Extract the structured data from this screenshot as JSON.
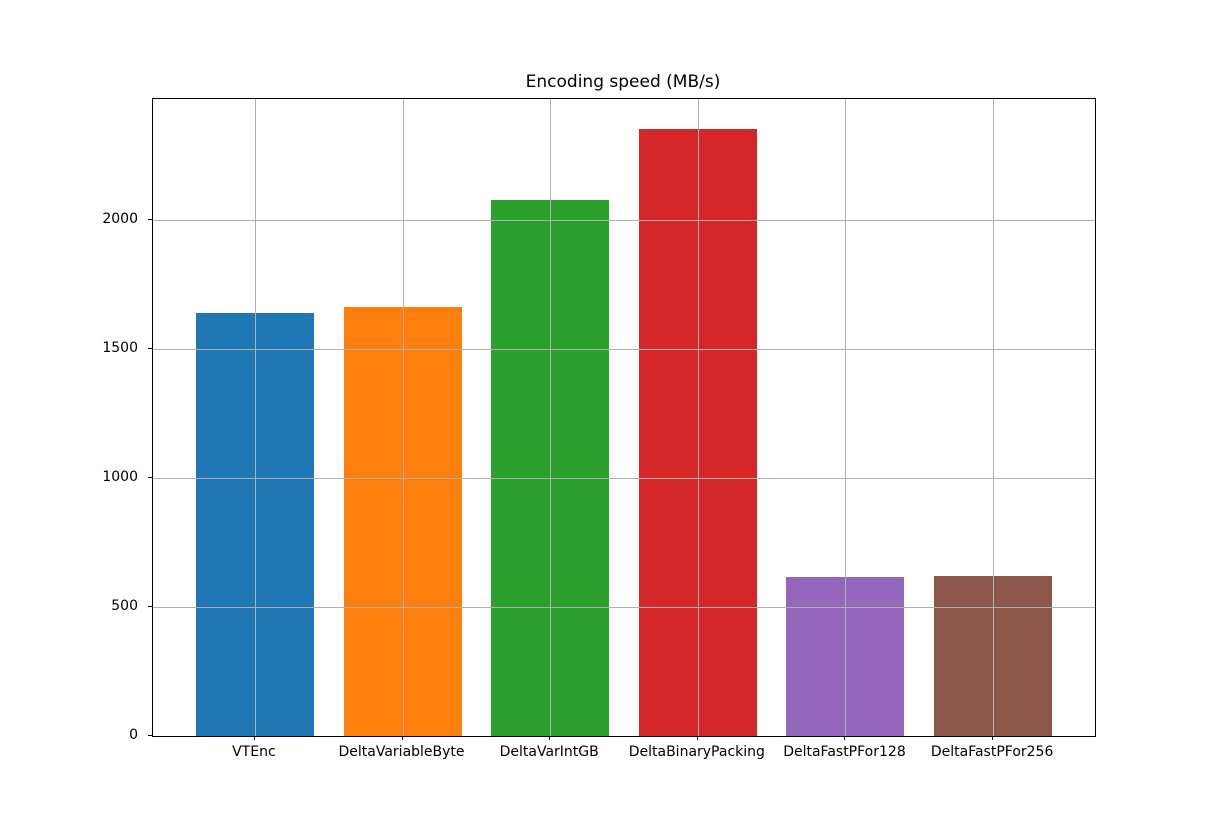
{
  "chart_data": {
    "type": "bar",
    "title": "Encoding speed (MB/s)",
    "categories": [
      "VTEnc",
      "DeltaVariableByte",
      "DeltaVarIntGB",
      "DeltaBinaryPacking",
      "DeltaFastPFor128",
      "DeltaFastPFor256"
    ],
    "values": [
      1640,
      1660,
      2075,
      2350,
      615,
      620
    ],
    "bar_colors": [
      "#1f77b4",
      "#ff7f0e",
      "#2ca02c",
      "#d62728",
      "#9467bd",
      "#8c564b"
    ],
    "xlabel": "",
    "ylabel": "",
    "ylim": [
      0,
      2467
    ],
    "yticks": [
      0,
      500,
      1000,
      1500,
      2000
    ],
    "grid": true,
    "grid_on_top_of_bars": true,
    "grid_color": "#b0b0b0",
    "axis_color": "#000000",
    "background_color": "#ffffff",
    "legend": "none"
  }
}
